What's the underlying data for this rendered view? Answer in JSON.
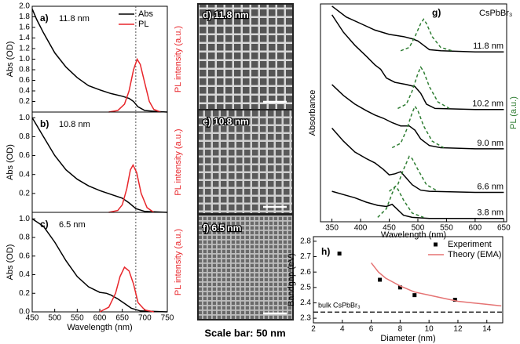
{
  "chart_data": [
    {
      "type": "line",
      "panel_label": "a)",
      "annotation": "11.8 nm",
      "ylabel": "Abs (OD)",
      "y2label": "PL intensity (a.u.)",
      "y2label_color": "#e8262b",
      "xlim": [
        450,
        750
      ],
      "ylim": [
        0,
        2
      ],
      "yticks": [
        0.2,
        0.4,
        0.6,
        0.8,
        {
          "value": 1,
          "label": "1.0"
        },
        1.2,
        1.4,
        1.6,
        1.8,
        {
          "value": 2,
          "label": "2.0"
        }
      ],
      "vline": 680,
      "legend": "upper right",
      "series": [
        {
          "name": "Abs",
          "color": "#000000",
          "x": [
            450,
            460,
            475,
            500,
            525,
            550,
            575,
            600,
            625,
            650,
            665,
            675,
            685,
            700,
            725,
            750
          ],
          "values": [
            1.95,
            1.75,
            1.5,
            1.12,
            0.85,
            0.65,
            0.5,
            0.42,
            0.35,
            0.3,
            0.26,
            0.2,
            0.1,
            0.03,
            0.01,
            0
          ]
        },
        {
          "name": "PL",
          "color": "#e8262b",
          "x": [
            620,
            640,
            655,
            665,
            675,
            683,
            690,
            700,
            710,
            720,
            735
          ],
          "values": [
            0,
            0.03,
            0.15,
            0.4,
            0.8,
            1.0,
            0.9,
            0.55,
            0.2,
            0.05,
            0
          ]
        }
      ]
    },
    {
      "type": "line",
      "panel_label": "b)",
      "annotation": "10.8 nm",
      "ylabel": "Abs (OD)",
      "y2label": "PL intensity (a.u.)",
      "y2label_color": "#e8262b",
      "xlim": [
        450,
        750
      ],
      "ylim": [
        0,
        1.06
      ],
      "yticks": [
        0.2,
        0.4,
        0.6,
        0.8,
        {
          "value": 1,
          "label": "1.0"
        }
      ],
      "vline": 680,
      "series": [
        {
          "color": "#000000",
          "x": [
            450,
            475,
            500,
            525,
            550,
            575,
            600,
            625,
            650,
            665,
            680,
            700,
            750
          ],
          "values": [
            1.0,
            0.8,
            0.6,
            0.45,
            0.35,
            0.28,
            0.23,
            0.19,
            0.15,
            0.1,
            0.04,
            0.01,
            0
          ]
        },
        {
          "color": "#e8262b",
          "x": [
            620,
            640,
            650,
            660,
            668,
            674,
            682,
            692,
            705,
            720
          ],
          "values": [
            0,
            0.02,
            0.08,
            0.25,
            0.45,
            0.5,
            0.42,
            0.2,
            0.05,
            0
          ]
        }
      ]
    },
    {
      "type": "line",
      "panel_label": "c)",
      "annotation": "6.5 nm",
      "ylabel": "Abs (OD)",
      "y2label": "PL intensity (a.u.)",
      "y2label_color": "#e8262b",
      "xlabel": "Wavelength (nm)",
      "xlim": [
        450,
        750
      ],
      "ylim": [
        0,
        1.07
      ],
      "xticks": [
        450,
        500,
        550,
        600,
        650,
        700,
        750
      ],
      "yticks": [
        {
          "value": 0,
          "label": "0.0"
        },
        0.2,
        0.4,
        0.6,
        0.8,
        {
          "value": 1,
          "label": "1.0"
        }
      ],
      "vline": 680,
      "series": [
        {
          "color": "#000000",
          "x": [
            450,
            475,
            500,
            525,
            550,
            575,
            600,
            615,
            625,
            640,
            655,
            670,
            690,
            750
          ],
          "values": [
            1.0,
            0.92,
            0.75,
            0.55,
            0.38,
            0.27,
            0.21,
            0.2,
            0.18,
            0.14,
            0.09,
            0.04,
            0.01,
            0
          ]
        },
        {
          "color": "#e8262b",
          "x": [
            600,
            620,
            635,
            645,
            655,
            665,
            675,
            685,
            700,
            720
          ],
          "values": [
            0,
            0.05,
            0.2,
            0.38,
            0.48,
            0.44,
            0.3,
            0.1,
            0.02,
            0
          ]
        }
      ]
    },
    {
      "type": "line",
      "panel_label": "g)",
      "annotation": "CsPbBr₃",
      "ylabel": "Absorbance",
      "y2label": "PL (a.u.)",
      "y2label_color": "#2e7d32",
      "xlabel": "Wavelength (nm)",
      "xlim": [
        330,
        655
      ],
      "ylim": [
        0,
        10
      ],
      "xticks": [
        350,
        400,
        450,
        500,
        550,
        600,
        650
      ],
      "legend": "curve-end",
      "series": [
        {
          "name": "11.8 nm",
          "color": "#000000",
          "x": [
            350,
            375,
            400,
            425,
            450,
            475,
            490,
            500,
            510,
            520,
            540,
            600,
            650
          ],
          "values": [
            9.9,
            9.4,
            9.1,
            8.8,
            8.6,
            8.5,
            8.4,
            8.3,
            8.1,
            7.9,
            7.85,
            7.8,
            7.8
          ]
        },
        {
          "color": "#2e7d32",
          "dash": true,
          "x": [
            470,
            485,
            495,
            505,
            510,
            515,
            525,
            540,
            560
          ],
          "values": [
            7.85,
            8.0,
            8.5,
            9.1,
            9.3,
            9.1,
            8.5,
            8.0,
            7.85
          ]
        },
        {
          "name": "10.2 nm",
          "color": "#000000",
          "x": [
            350,
            370,
            390,
            410,
            425,
            435,
            445,
            460,
            480,
            495,
            505,
            515,
            530,
            600,
            650
          ],
          "values": [
            9.5,
            8.7,
            8.1,
            7.6,
            7.2,
            7.0,
            6.6,
            6.4,
            6.3,
            6.2,
            5.9,
            5.4,
            5.2,
            5.15,
            5.15
          ]
        },
        {
          "color": "#2e7d32",
          "dash": true,
          "x": [
            465,
            480,
            490,
            500,
            505,
            510,
            520,
            535,
            555
          ],
          "values": [
            5.2,
            5.4,
            6.0,
            6.8,
            7.1,
            6.9,
            6.2,
            5.5,
            5.2
          ]
        },
        {
          "name": "9.0 nm",
          "color": "#000000",
          "x": [
            350,
            370,
            390,
            410,
            425,
            440,
            455,
            470,
            485,
            495,
            505,
            520,
            540,
            600,
            650
          ],
          "values": [
            6.3,
            5.8,
            5.4,
            5.1,
            4.9,
            4.75,
            4.55,
            4.4,
            4.4,
            4.2,
            3.8,
            3.5,
            3.4,
            3.35,
            3.35
          ]
        },
        {
          "color": "#2e7d32",
          "dash": true,
          "x": [
            455,
            470,
            480,
            490,
            495,
            500,
            510,
            525,
            545
          ],
          "values": [
            3.4,
            3.6,
            4.2,
            5.0,
            5.3,
            5.1,
            4.4,
            3.7,
            3.4
          ]
        },
        {
          "name": "6.6 nm",
          "color": "#000000",
          "x": [
            350,
            370,
            390,
            410,
            425,
            440,
            450,
            460,
            470,
            480,
            490,
            505,
            520,
            600,
            650
          ],
          "values": [
            4.3,
            3.7,
            3.2,
            2.9,
            2.7,
            2.4,
            2.15,
            2.2,
            2.3,
            2.0,
            1.7,
            1.45,
            1.4,
            1.35,
            1.35
          ]
        },
        {
          "color": "#2e7d32",
          "dash": true,
          "x": [
            450,
            465,
            475,
            485,
            490,
            500,
            515,
            535
          ],
          "values": [
            1.4,
            1.7,
            2.4,
            3.0,
            2.9,
            2.4,
            1.7,
            1.4
          ]
        },
        {
          "name": "3.8 nm",
          "color": "#000000",
          "x": [
            350,
            370,
            390,
            410,
            430,
            445,
            455,
            465,
            475,
            490,
            520,
            600,
            650
          ],
          "values": [
            1.4,
            1.25,
            1.1,
            0.9,
            0.75,
            0.7,
            0.8,
            0.55,
            0.3,
            0.2,
            0.15,
            0.15,
            0.15
          ]
        },
        {
          "color": "#2e7d32",
          "dash": true,
          "x": [
            430,
            445,
            455,
            460,
            465,
            475,
            490,
            510
          ],
          "values": [
            0.2,
            0.6,
            1.3,
            1.6,
            1.5,
            1.0,
            0.4,
            0.2
          ]
        }
      ]
    },
    {
      "type": "scatter",
      "panel_label": "h)",
      "xlabel": "Diameter (nm)",
      "ylabel": "Bandgap (eV)",
      "xlim": [
        2,
        15.1
      ],
      "ylim": [
        2.27,
        2.83
      ],
      "xticks": [
        2,
        4,
        6,
        8,
        10,
        12,
        14
      ],
      "yticks": [
        2.3,
        2.4,
        2.5,
        2.6,
        2.7,
        2.8
      ],
      "hline": 2.34,
      "hline_label": "bulk CsPbBr₃",
      "legend": "upper right",
      "series": [
        {
          "name": "Experiment",
          "type": "scatter",
          "color": "#000000",
          "x": [
            3.8,
            6.6,
            8.0,
            9.0,
            11.8
          ],
          "values": [
            2.72,
            2.55,
            2.5,
            2.45,
            2.42
          ]
        },
        {
          "name": "Theory (EMA)",
          "type": "line",
          "color": "#e57373",
          "x": [
            6,
            6.5,
            7,
            8,
            9,
            10,
            11,
            12,
            13,
            14,
            15
          ],
          "values": [
            2.66,
            2.6,
            2.56,
            2.51,
            2.47,
            2.45,
            2.43,
            2.41,
            2.4,
            2.39,
            2.38
          ]
        }
      ]
    }
  ],
  "images": [
    {
      "label": "d) 11.8 nm"
    },
    {
      "label": "e) 10.8 nm"
    },
    {
      "label": "f) 6.5 nm"
    }
  ],
  "scale_bar": "Scale bar: 50 nm"
}
